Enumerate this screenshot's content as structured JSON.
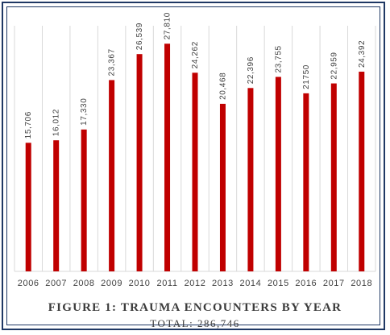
{
  "chart_data": {
    "type": "bar",
    "categories": [
      "2006",
      "2007",
      "2008",
      "2009",
      "2010",
      "2011",
      "2012",
      "2013",
      "2014",
      "2015",
      "2016",
      "2017",
      "2018"
    ],
    "values": [
      15706,
      16012,
      17330,
      23367,
      26539,
      27810,
      24262,
      20468,
      22396,
      23755,
      21750,
      22959,
      24392
    ],
    "data_labels": [
      "15,706",
      "16,012",
      "17,330",
      "23,367",
      "26,539",
      "27,810",
      "24,262",
      "20,468",
      "22,396",
      "23,755",
      "21750",
      "22,959",
      "24,392"
    ],
    "ylim": [
      0,
      30000
    ],
    "grid": "vertical",
    "bar_color": "#c00000",
    "title": "FIGURE 1: TRAUMA ENCOUNTERS BY YEAR",
    "subtitle": "TOTAL: 286,746"
  }
}
